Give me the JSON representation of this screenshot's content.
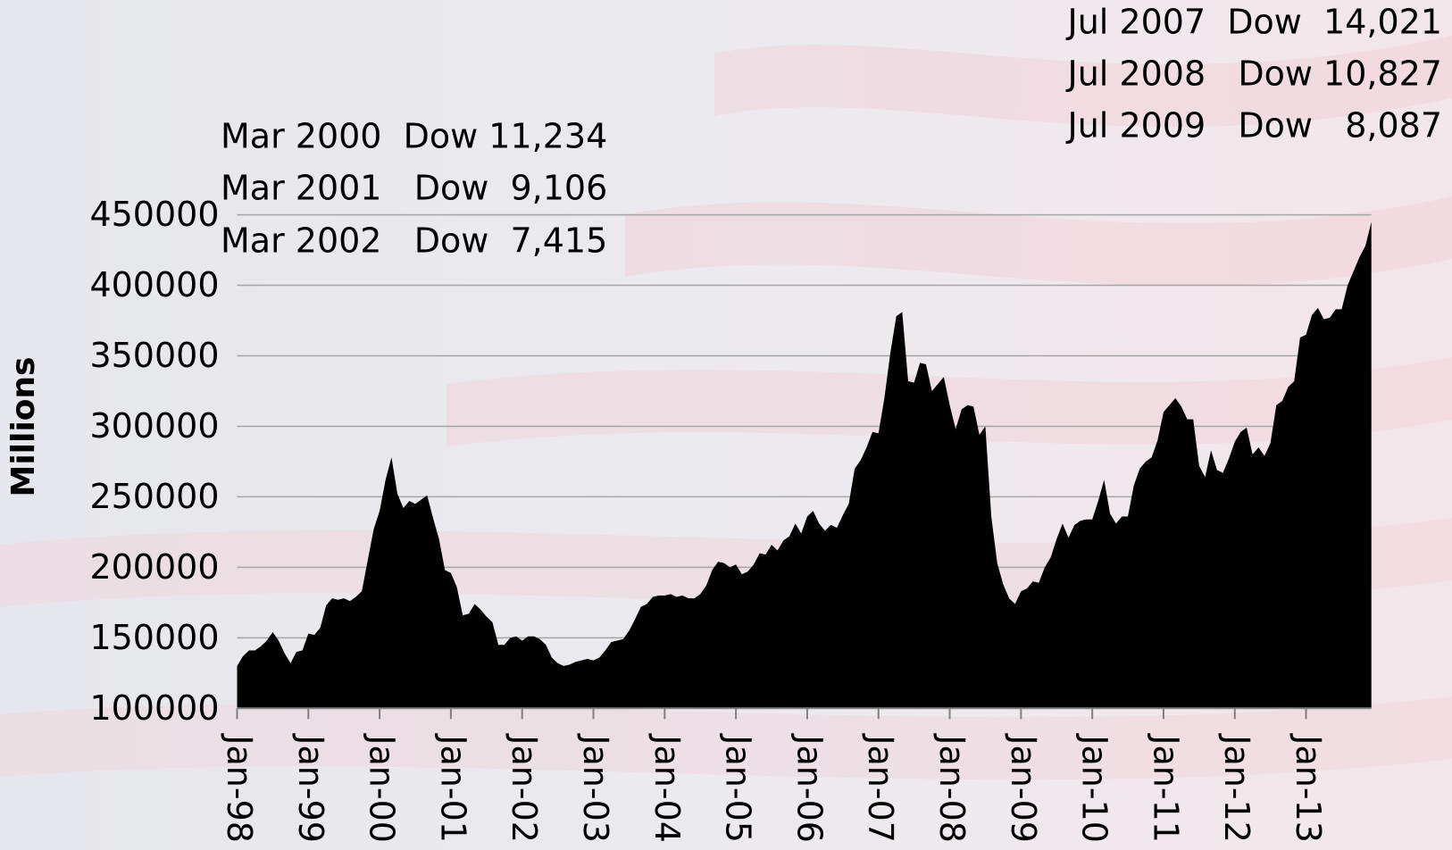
{
  "chart_data": {
    "type": "area",
    "y_label": "Millions",
    "annotations": [
      "Mar 2000  Dow 11,234",
      "Mar 2001   Dow  9,106",
      "Mar 2002   Dow  7,415",
      "Jul 2007  Dow  14,021",
      "Jul 2008   Dow 10,827",
      "Jul 2009   Dow   8,087"
    ],
    "categories": [
      "Jan-98",
      null,
      null,
      null,
      null,
      null,
      null,
      null,
      null,
      null,
      null,
      null,
      "Jan-99",
      null,
      null,
      null,
      null,
      null,
      null,
      null,
      null,
      null,
      null,
      null,
      "Jan-00",
      null,
      null,
      null,
      null,
      null,
      null,
      null,
      null,
      null,
      null,
      null,
      "Jan-01",
      null,
      null,
      null,
      null,
      null,
      null,
      null,
      null,
      null,
      null,
      null,
      "Jan-02",
      null,
      null,
      null,
      null,
      null,
      null,
      null,
      null,
      null,
      null,
      null,
      "Jan-03",
      null,
      null,
      null,
      null,
      null,
      null,
      null,
      null,
      null,
      null,
      null,
      "Jan-04",
      null,
      null,
      null,
      null,
      null,
      null,
      null,
      null,
      null,
      null,
      null,
      "Jan-05",
      null,
      null,
      null,
      null,
      null,
      null,
      null,
      null,
      null,
      null,
      null,
      "Jan-06",
      null,
      null,
      null,
      null,
      null,
      null,
      null,
      null,
      null,
      null,
      null,
      "Jan-07",
      null,
      null,
      null,
      null,
      null,
      null,
      null,
      null,
      null,
      null,
      null,
      "Jan-08",
      null,
      null,
      null,
      null,
      null,
      null,
      null,
      null,
      null,
      null,
      null,
      "Jan-09",
      null,
      null,
      null,
      null,
      null,
      null,
      null,
      null,
      null,
      null,
      null,
      "Jan-10",
      null,
      null,
      null,
      null,
      null,
      null,
      null,
      null,
      null,
      null,
      null,
      "Jan-11",
      null,
      null,
      null,
      null,
      null,
      null,
      null,
      null,
      null,
      null,
      null,
      "Jan-12",
      null,
      null,
      null,
      null,
      null,
      null,
      null,
      null,
      null,
      null,
      null,
      "Jan-13",
      null,
      null,
      null,
      null,
      null,
      null,
      null,
      null,
      null,
      null,
      null
    ],
    "values": [
      130000,
      137000,
      141000,
      141000,
      144000,
      148000,
      154000,
      148000,
      139000,
      132000,
      140000,
      141000,
      153000,
      152000,
      157000,
      173000,
      178000,
      177000,
      178000,
      176000,
      179000,
      183000,
      205000,
      227000,
      240000,
      262000,
      278000,
      252000,
      242000,
      247000,
      245000,
      248000,
      251000,
      235000,
      220000,
      198000,
      196000,
      186000,
      166000,
      167000,
      174000,
      170000,
      165000,
      161000,
      145000,
      145000,
      150000,
      151000,
      148000,
      151000,
      151000,
      149000,
      145000,
      136000,
      132000,
      130000,
      131000,
      133000,
      134000,
      135000,
      134000,
      136000,
      141000,
      147000,
      148000,
      149000,
      155000,
      163000,
      172000,
      174000,
      179000,
      180000,
      180000,
      181000,
      179000,
      180000,
      178000,
      178000,
      181000,
      187000,
      198000,
      204000,
      203000,
      200000,
      202000,
      195000,
      197000,
      202000,
      210000,
      209000,
      216000,
      212000,
      219000,
      222000,
      231000,
      224000,
      236000,
      240000,
      231000,
      226000,
      230000,
      228000,
      237000,
      245000,
      270000,
      276000,
      285000,
      296000,
      295000,
      320000,
      352000,
      378000,
      381000,
      332000,
      331000,
      345000,
      344000,
      325000,
      330000,
      335000,
      315000,
      298000,
      312000,
      315000,
      314000,
      294000,
      300000,
      236000,
      203000,
      188000,
      178000,
      174000,
      183000,
      185000,
      190000,
      189000,
      200000,
      207000,
      220000,
      231000,
      221000,
      230000,
      233000,
      234000,
      234000,
      247000,
      262000,
      238000,
      231000,
      236000,
      236000,
      258000,
      270000,
      275000,
      278000,
      290000,
      310000,
      315000,
      320000,
      314000,
      305000,
      305000,
      272000,
      264000,
      283000,
      269000,
      267000,
      277000,
      289000,
      296000,
      299000,
      280000,
      285000,
      279000,
      288000,
      315000,
      318000,
      328000,
      332000,
      363000,
      365000,
      379000,
      384000,
      376000,
      377000,
      383000,
      383000,
      400000,
      410000,
      420000,
      428000,
      445000
    ],
    "color": "#000000",
    "ylim": [
      100000,
      450000
    ],
    "yticks": [
      100000,
      150000,
      200000,
      250000,
      300000,
      350000,
      400000,
      450000
    ],
    "grid": true
  }
}
